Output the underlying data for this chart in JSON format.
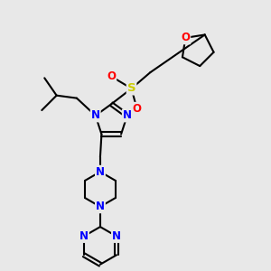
{
  "background_color": "#e8e8e8",
  "atom_colors": {
    "N": "#0000ff",
    "O": "#ff0000",
    "S": "#cccc00",
    "C": "#000000"
  },
  "bond_color": "#000000",
  "bond_width": 1.5,
  "figsize": [
    3.0,
    3.0
  ],
  "dpi": 100
}
